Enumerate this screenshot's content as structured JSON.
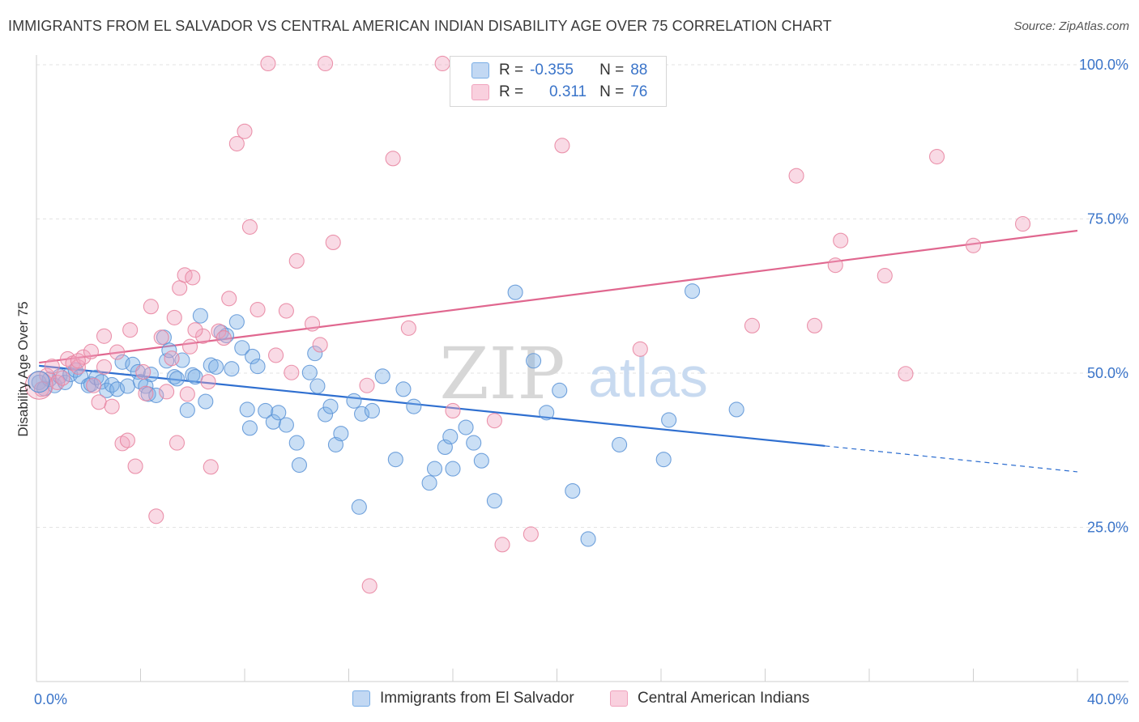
{
  "title": "IMMIGRANTS FROM EL SALVADOR VS CENTRAL AMERICAN INDIAN DISABILITY AGE OVER 75 CORRELATION CHART",
  "source": "Source: ZipAtlas.com",
  "watermark": {
    "zip": "ZIP",
    "atlas": "atlas"
  },
  "legend_stats": [
    {
      "r_label": "R =",
      "r_value": "-0.355",
      "n_label": "N =",
      "n_value": "88",
      "color": "#7aaee6"
    },
    {
      "r_label": "R =",
      "r_value": "0.311",
      "n_label": "N =",
      "n_value": "76",
      "color": "#f0a3bd"
    }
  ],
  "chart_data": {
    "type": "scatter",
    "ylabel": "Disability Age Over 75",
    "xlim": [
      0,
      40
    ],
    "ylim": [
      0,
      100
    ],
    "x_tick_labels": {
      "left": "0.0%",
      "right": "40.0%"
    },
    "y_ticks": [
      {
        "value": 100,
        "label": "100.0%"
      },
      {
        "value": 75,
        "label": "75.0%"
      },
      {
        "value": 50,
        "label": "50.0%"
      },
      {
        "value": 25,
        "label": "25.0%"
      }
    ],
    "grid": true,
    "series": [
      {
        "name": "Immigrants from El Salvador",
        "color": "#7aaee6",
        "stroke": "#5b93d6",
        "line_color": "#2f6fd0",
        "trend": {
          "x0": 0.1,
          "y0": 51.2,
          "x1": 30.3,
          "y1": 38.2,
          "dash_x1": 40.0,
          "dash_y1": 34.0
        },
        "points": [
          [
            0.1,
            48.5
          ],
          [
            0.3,
            47.5
          ],
          [
            0.5,
            49
          ],
          [
            0.7,
            48
          ],
          [
            0.9,
            49.5
          ],
          [
            1.1,
            48.5
          ],
          [
            1.3,
            49.8
          ],
          [
            1.5,
            50.5
          ],
          [
            1.7,
            49.5
          ],
          [
            2.0,
            48
          ],
          [
            2.1,
            48.2
          ],
          [
            2.3,
            49.3
          ],
          [
            2.5,
            48.6
          ],
          [
            2.7,
            47.2
          ],
          [
            2.9,
            48.1
          ],
          [
            3.1,
            47.4
          ],
          [
            3.3,
            51.8
          ],
          [
            3.5,
            47.9
          ],
          [
            3.7,
            51.4
          ],
          [
            3.9,
            50.2
          ],
          [
            4.0,
            48.6
          ],
          [
            4.2,
            47.9
          ],
          [
            4.3,
            46.6
          ],
          [
            4.4,
            49.8
          ],
          [
            4.6,
            46.4
          ],
          [
            4.9,
            55.8
          ],
          [
            5.0,
            52.0
          ],
          [
            5.1,
            53.7
          ],
          [
            5.3,
            49.4
          ],
          [
            5.4,
            49.1
          ],
          [
            5.6,
            52.1
          ],
          [
            5.8,
            44.0
          ],
          [
            6.0,
            49.7
          ],
          [
            6.1,
            49.4
          ],
          [
            6.3,
            59.3
          ],
          [
            6.5,
            45.4
          ],
          [
            6.7,
            51.3
          ],
          [
            6.9,
            51.0
          ],
          [
            7.1,
            56.6
          ],
          [
            7.3,
            56.1
          ],
          [
            7.5,
            50.7
          ],
          [
            7.7,
            58.3
          ],
          [
            7.9,
            54.1
          ],
          [
            8.3,
            52.7
          ],
          [
            8.5,
            51.1
          ],
          [
            8.1,
            44.1
          ],
          [
            8.2,
            41.1
          ],
          [
            8.8,
            43.9
          ],
          [
            9.1,
            42.1
          ],
          [
            9.3,
            43.6
          ],
          [
            10.5,
            50.1
          ],
          [
            10.7,
            53.2
          ],
          [
            10.8,
            47.9
          ],
          [
            11.1,
            43.3
          ],
          [
            11.3,
            44.6
          ],
          [
            11.5,
            38.4
          ],
          [
            11.7,
            40.2
          ],
          [
            12.2,
            45.5
          ],
          [
            12.5,
            43.4
          ],
          [
            12.9,
            43.9
          ],
          [
            13.3,
            49.5
          ],
          [
            14.1,
            47.4
          ],
          [
            15.1,
            32.2
          ],
          [
            15.7,
            38.0
          ],
          [
            15.9,
            39.7
          ],
          [
            16.5,
            41.2
          ],
          [
            16.8,
            38.7
          ],
          [
            17.1,
            35.8
          ],
          [
            17.6,
            29.3
          ],
          [
            18.4,
            63.1
          ],
          [
            19.1,
            52.0
          ],
          [
            20.6,
            30.9
          ],
          [
            21.2,
            23.1
          ],
          [
            22.4,
            38.4
          ],
          [
            24.1,
            36.0
          ],
          [
            24.3,
            42.4
          ],
          [
            25.2,
            63.3
          ],
          [
            26.9,
            44.1
          ],
          [
            20.1,
            47.2
          ],
          [
            19.6,
            43.6
          ],
          [
            16.0,
            34.5
          ],
          [
            15.3,
            34.5
          ],
          [
            14.5,
            44.6
          ],
          [
            13.8,
            36.0
          ],
          [
            12.4,
            28.3
          ],
          [
            10.1,
            35.1
          ],
          [
            9.6,
            41.6
          ],
          [
            10.0,
            38.7
          ]
        ]
      },
      {
        "name": "Central American Indians",
        "color": "#f0a3bd",
        "stroke": "#e8839f",
        "line_color": "#e0678f",
        "trend": {
          "x0": 0.1,
          "y0": 51.7,
          "x1": 40.0,
          "y1": 73.1
        },
        "points": [
          [
            0.2,
            47.4
          ],
          [
            0.4,
            49.6
          ],
          [
            0.6,
            51.1
          ],
          [
            0.8,
            48.5
          ],
          [
            1.0,
            49.2
          ],
          [
            1.2,
            52.3
          ],
          [
            1.4,
            51.6
          ],
          [
            1.6,
            51.0
          ],
          [
            1.8,
            52.6
          ],
          [
            2.1,
            53.5
          ],
          [
            2.2,
            48.0
          ],
          [
            2.4,
            45.3
          ],
          [
            2.6,
            51.0
          ],
          [
            2.9,
            44.6
          ],
          [
            3.1,
            53.4
          ],
          [
            3.3,
            38.6
          ],
          [
            3.5,
            39.1
          ],
          [
            3.8,
            34.9
          ],
          [
            4.1,
            50.2
          ],
          [
            4.2,
            46.7
          ],
          [
            4.6,
            26.8
          ],
          [
            4.8,
            55.8
          ],
          [
            5.0,
            47.0
          ],
          [
            5.2,
            52.4
          ],
          [
            5.4,
            38.7
          ],
          [
            5.5,
            63.8
          ],
          [
            5.7,
            65.9
          ],
          [
            5.9,
            54.3
          ],
          [
            6.0,
            65.5
          ],
          [
            6.4,
            56.0
          ],
          [
            6.6,
            48.6
          ],
          [
            6.7,
            34.8
          ],
          [
            7.0,
            56.8
          ],
          [
            7.2,
            55.7
          ],
          [
            7.4,
            62.1
          ],
          [
            7.7,
            87.2
          ],
          [
            8.0,
            89.2
          ],
          [
            8.2,
            73.7
          ],
          [
            8.5,
            60.3
          ],
          [
            8.9,
            100.2
          ],
          [
            9.2,
            52.9
          ],
          [
            9.6,
            60.1
          ],
          [
            10.0,
            68.2
          ],
          [
            10.6,
            58.0
          ],
          [
            10.9,
            54.6
          ],
          [
            11.1,
            100.2
          ],
          [
            11.4,
            71.2
          ],
          [
            12.8,
            15.5
          ],
          [
            13.7,
            84.8
          ],
          [
            14.3,
            57.3
          ],
          [
            15.6,
            100.2
          ],
          [
            16.0,
            43.9
          ],
          [
            17.6,
            42.3
          ],
          [
            17.9,
            22.2
          ],
          [
            19.0,
            23.9
          ],
          [
            20.2,
            86.9
          ],
          [
            23.2,
            53.9
          ],
          [
            27.5,
            57.7
          ],
          [
            29.2,
            82.0
          ],
          [
            29.9,
            57.7
          ],
          [
            30.7,
            67.5
          ],
          [
            30.9,
            71.5
          ],
          [
            32.6,
            65.8
          ],
          [
            33.4,
            49.9
          ],
          [
            34.6,
            85.1
          ],
          [
            36.0,
            70.7
          ],
          [
            37.9,
            74.2
          ],
          [
            12.7,
            48.0
          ],
          [
            3.6,
            57.0
          ],
          [
            5.3,
            59.0
          ],
          [
            6.1,
            57.0
          ],
          [
            2.6,
            56.0
          ],
          [
            4.4,
            60.8
          ],
          [
            9.8,
            50.1
          ],
          [
            5.8,
            46.6
          ],
          [
            1.6,
            52.0
          ]
        ]
      }
    ]
  }
}
